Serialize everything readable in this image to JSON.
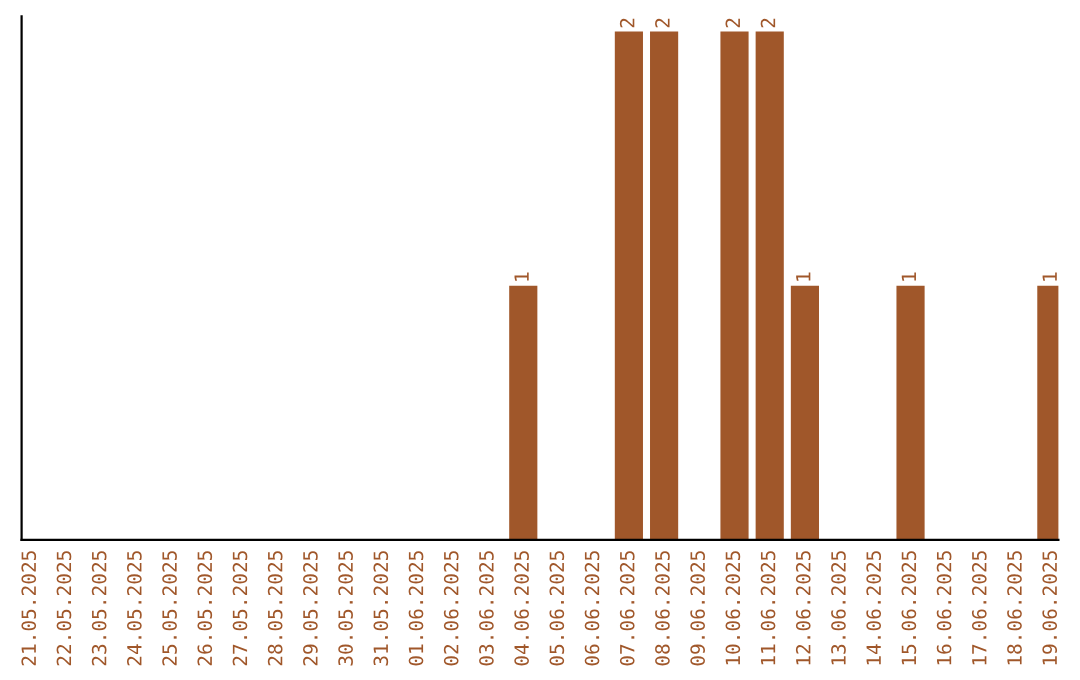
{
  "chart_data": {
    "type": "bar",
    "categories": [
      "21.05.2025",
      "22.05.2025",
      "23.05.2025",
      "24.05.2025",
      "25.05.2025",
      "26.05.2025",
      "27.05.2025",
      "28.05.2025",
      "29.05.2025",
      "30.05.2025",
      "31.05.2025",
      "01.06.2025",
      "02.06.2025",
      "03.06.2025",
      "04.06.2025",
      "05.06.2025",
      "06.06.2025",
      "07.06.2025",
      "08.06.2025",
      "09.06.2025",
      "10.06.2025",
      "11.06.2025",
      "12.06.2025",
      "13.06.2025",
      "14.06.2025",
      "15.06.2025",
      "16.06.2025",
      "17.06.2025",
      "18.06.2025",
      "19.06.2025"
    ],
    "values": [
      null,
      null,
      null,
      null,
      null,
      null,
      null,
      null,
      null,
      null,
      null,
      null,
      null,
      null,
      1,
      null,
      null,
      2,
      2,
      null,
      2,
      2,
      1,
      null,
      null,
      1,
      null,
      null,
      null,
      1
    ],
    "data_labels": true,
    "color": "#a0572a",
    "tick_labels": "x",
    "grid": false,
    "legend": false
  }
}
